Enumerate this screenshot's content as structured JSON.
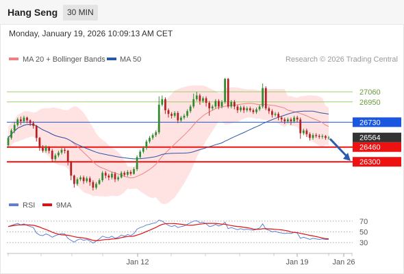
{
  "header": {
    "title": "Hang Seng",
    "interval": "30 MIN"
  },
  "datetime": "Monday, January 19, 2026 10:09:13 AM CET",
  "legend": {
    "ma20": {
      "label": "MA 20 + Bollinger Bands",
      "color": "#f08080"
    },
    "ma50": {
      "label": "MA 50",
      "color": "#2a56a8"
    }
  },
  "copyright": "Research © 2026 Trading Central",
  "rsi_legend": {
    "rsi": {
      "label": "RSI",
      "color": "#5a7fd6"
    },
    "ma9": {
      "label": "9MA",
      "color": "#e01010"
    }
  },
  "colors": {
    "up": "#2e8b2e",
    "down": "#b22222",
    "support": "#ee1111",
    "pivot": "#1a56e0",
    "resistance": "#9acd6a",
    "last": "#333333",
    "band": "#ffd8d8"
  },
  "chart_data": {
    "type": "candlestick",
    "y_range": [
      25900,
      27350
    ],
    "levels": [
      {
        "value": 27060,
        "label": "27060",
        "kind": "resistance"
      },
      {
        "value": 26950,
        "label": "26950",
        "kind": "resistance"
      },
      {
        "value": 26730,
        "label": "26730",
        "kind": "pivot"
      },
      {
        "value": 26564,
        "label": "26564",
        "kind": "last"
      },
      {
        "value": 26460,
        "label": "26460",
        "kind": "support"
      },
      {
        "value": 26300,
        "label": "26300",
        "kind": "support"
      }
    ],
    "x_ticks": [
      "Jan 12",
      "Jan 19",
      "Jan 26"
    ],
    "rsi_ticks": [
      "70",
      "50",
      "30"
    ],
    "rsi_range": [
      20,
      80
    ],
    "candles": [
      [
        26480,
        26560,
        26450,
        26580
      ],
      [
        26560,
        26640,
        26540,
        26660
      ],
      [
        26640,
        26700,
        26610,
        26730
      ],
      [
        26700,
        26760,
        26680,
        26780
      ],
      [
        26760,
        26740,
        26700,
        26790
      ],
      [
        26740,
        26780,
        26720,
        26800
      ],
      [
        26780,
        26750,
        26720,
        26790
      ],
      [
        26750,
        26720,
        26690,
        26760
      ],
      [
        26720,
        26690,
        26660,
        26740
      ],
      [
        26690,
        26560,
        26520,
        26700
      ],
      [
        26560,
        26450,
        26420,
        26570
      ],
      [
        26450,
        26420,
        26400,
        26480
      ],
      [
        26420,
        26460,
        26400,
        26480
      ],
      [
        26460,
        26420,
        26390,
        26470
      ],
      [
        26420,
        26330,
        26300,
        26440
      ],
      [
        26330,
        26370,
        26310,
        26390
      ],
      [
        26370,
        26400,
        26350,
        26420
      ],
      [
        26400,
        26430,
        26380,
        26450
      ],
      [
        26430,
        26420,
        26390,
        26450
      ],
      [
        26420,
        26300,
        26260,
        26430
      ],
      [
        26300,
        26150,
        26100,
        26310
      ],
      [
        26150,
        26060,
        26020,
        26160
      ],
      [
        26060,
        26110,
        26040,
        26130
      ],
      [
        26110,
        26130,
        26090,
        26150
      ],
      [
        26130,
        26090,
        26060,
        26150
      ],
      [
        26090,
        26120,
        26070,
        26140
      ],
      [
        26120,
        26080,
        26040,
        26140
      ],
      [
        26080,
        26020,
        25990,
        26100
      ],
      [
        26020,
        26060,
        26000,
        26080
      ],
      [
        26060,
        26100,
        26050,
        26120
      ],
      [
        26100,
        26180,
        26080,
        26200
      ],
      [
        26180,
        26150,
        26120,
        26200
      ],
      [
        26150,
        26130,
        26100,
        26170
      ],
      [
        26130,
        26170,
        26110,
        26190
      ],
      [
        26170,
        26110,
        26080,
        26190
      ],
      [
        26110,
        26130,
        26090,
        26150
      ],
      [
        26130,
        26180,
        26120,
        26200
      ],
      [
        26180,
        26160,
        26140,
        26200
      ],
      [
        26160,
        26190,
        26140,
        26210
      ],
      [
        26190,
        26170,
        26150,
        26210
      ],
      [
        26170,
        26220,
        26160,
        26240
      ],
      [
        26220,
        26350,
        26200,
        26370
      ],
      [
        26350,
        26410,
        26330,
        26430
      ],
      [
        26410,
        26450,
        26390,
        26470
      ],
      [
        26450,
        26520,
        26430,
        26540
      ],
      [
        26520,
        26560,
        26500,
        26580
      ],
      [
        26560,
        26590,
        26540,
        26610
      ],
      [
        26590,
        26620,
        26570,
        26640
      ],
      [
        26620,
        26920,
        26600,
        27010
      ],
      [
        26920,
        26980,
        26900,
        27020
      ],
      [
        26980,
        26860,
        26820,
        27000
      ],
      [
        26860,
        26820,
        26780,
        26880
      ],
      [
        26820,
        26800,
        26770,
        26840
      ],
      [
        26800,
        26830,
        26780,
        26850
      ],
      [
        26830,
        26750,
        26720,
        26850
      ],
      [
        26750,
        26780,
        26730,
        26800
      ],
      [
        26780,
        26800,
        26760,
        26820
      ],
      [
        26800,
        26850,
        26780,
        26870
      ],
      [
        26850,
        26900,
        26830,
        26920
      ],
      [
        26900,
        26980,
        26880,
        27040
      ],
      [
        26980,
        27020,
        26960,
        27060
      ],
      [
        27020,
        26960,
        26920,
        27040
      ],
      [
        26960,
        26990,
        26940,
        27010
      ],
      [
        26990,
        26940,
        26900,
        27010
      ],
      [
        26940,
        26880,
        26800,
        26960
      ],
      [
        26880,
        26900,
        26860,
        26920
      ],
      [
        26900,
        26960,
        26880,
        26980
      ],
      [
        26960,
        26900,
        26870,
        26980
      ],
      [
        26900,
        26950,
        26880,
        26970
      ],
      [
        26950,
        27200,
        26930,
        27210
      ],
      [
        27200,
        26900,
        26880,
        27210
      ],
      [
        26900,
        26950,
        26880,
        26970
      ],
      [
        26950,
        26900,
        26870,
        26970
      ],
      [
        26900,
        26860,
        26830,
        26920
      ],
      [
        26860,
        26890,
        26840,
        26910
      ],
      [
        26890,
        26860,
        26830,
        26910
      ],
      [
        26860,
        26880,
        26840,
        26900
      ],
      [
        26880,
        26860,
        26840,
        26900
      ],
      [
        26860,
        26840,
        26820,
        26880
      ],
      [
        26840,
        26870,
        26820,
        26890
      ],
      [
        26870,
        26900,
        26850,
        26920
      ],
      [
        26900,
        27100,
        26880,
        27150
      ],
      [
        27100,
        26880,
        26860,
        27120
      ],
      [
        26880,
        26850,
        26820,
        26900
      ],
      [
        26850,
        26810,
        26780,
        26870
      ],
      [
        26810,
        26820,
        26790,
        26840
      ],
      [
        26820,
        26780,
        26750,
        26840
      ],
      [
        26780,
        26760,
        26730,
        26800
      ],
      [
        26760,
        26740,
        26710,
        26780
      ],
      [
        26740,
        26760,
        26720,
        26780
      ],
      [
        26760,
        26740,
        26700,
        26780
      ],
      [
        26740,
        26780,
        26720,
        26800
      ],
      [
        26780,
        26760,
        26730,
        26800
      ],
      [
        26760,
        26610,
        26550,
        26780
      ],
      [
        26610,
        26640,
        26590,
        26660
      ],
      [
        26640,
        26600,
        26570,
        26660
      ],
      [
        26600,
        26560,
        26530,
        26620
      ],
      [
        26560,
        26590,
        26540,
        26610
      ],
      [
        26590,
        26580,
        26560,
        26610
      ],
      [
        26580,
        26570,
        26550,
        26600
      ],
      [
        26570,
        26580,
        26550,
        26600
      ],
      [
        26580,
        26560,
        26540,
        26590
      ],
      [
        26560,
        26564,
        26540,
        26580
      ]
    ],
    "rsi": [
      60,
      62,
      64,
      66,
      63,
      65,
      62,
      60,
      58,
      48,
      44,
      43,
      46,
      44,
      40,
      43,
      45,
      47,
      46,
      38,
      34,
      31,
      35,
      37,
      34,
      36,
      33,
      29,
      33,
      37,
      42,
      40,
      39,
      42,
      38,
      40,
      44,
      42,
      45,
      43,
      47,
      55,
      58,
      60,
      63,
      64,
      66,
      67,
      72,
      70,
      66,
      62,
      60,
      62,
      58,
      60,
      61,
      64,
      67,
      70,
      71,
      67,
      68,
      65,
      60,
      61,
      64,
      61,
      63,
      68,
      56,
      58,
      56,
      54,
      56,
      54,
      55,
      54,
      53,
      55,
      57,
      65,
      55,
      53,
      50,
      51,
      49,
      48,
      47,
      48,
      47,
      49,
      48,
      38,
      40,
      38,
      36,
      38,
      37,
      36,
      37,
      36,
      36
    ]
  }
}
